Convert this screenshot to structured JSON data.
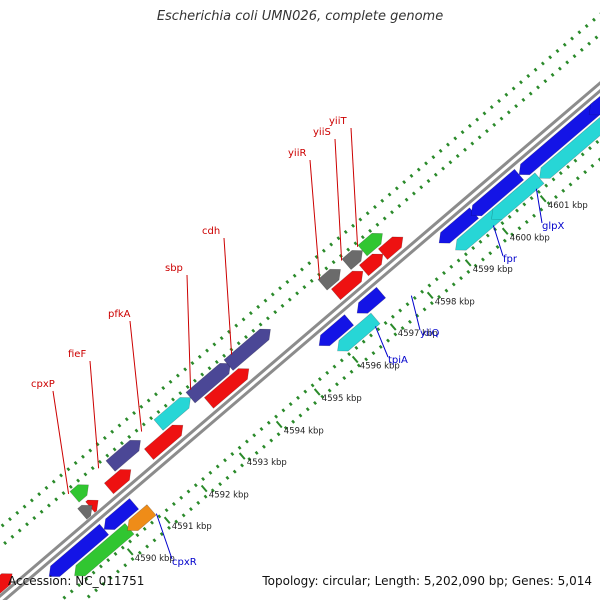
{
  "title": "Escherichia coli UMN026, complete genome",
  "accession_label": "Accession: NC_011751",
  "summary_label": "Topology: circular; Length: 5,202,090 bp; Genes: 5,014",
  "colors": {
    "backbone": "#8c8c8c",
    "tick_dots": "#2a8a2a",
    "forward_label": "#cc0000",
    "reverse_label": "#0000cc",
    "blue": "#1414e6",
    "cyan": "#27d6d6",
    "red": "#ee1111",
    "slate": "#4b4796",
    "gray": "#6b6b6b",
    "green": "#31c631",
    "orange": "#ef8c18"
  },
  "kbp_ticks": [
    "4590 kbp",
    "4591 kbp",
    "4592 kbp",
    "4593 kbp",
    "4594 kbp",
    "4595 kbp",
    "4596 kbp",
    "4597 kbp",
    "4598 kbp",
    "4599 kbp",
    "4600 kbp",
    "4601 kbp"
  ],
  "forward_gene_labels": [
    "cpxP",
    "fieF",
    "pfkA",
    "sbp",
    "cdh",
    "yiiR",
    "yiiS",
    "yiiT"
  ],
  "reverse_gene_labels": [
    "cpxR",
    "tpiA",
    "yiiQ",
    "fpr",
    "glpX"
  ]
}
